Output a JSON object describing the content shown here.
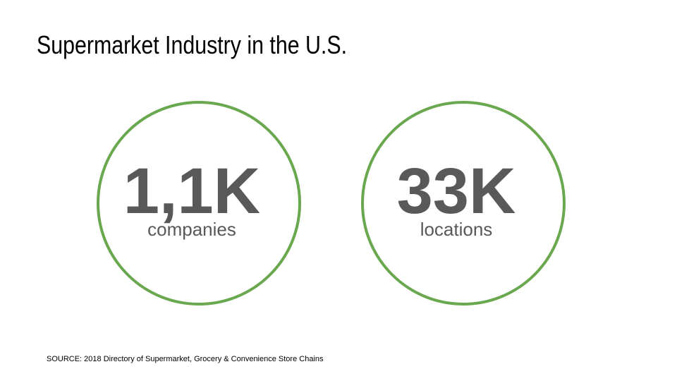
{
  "header": {
    "title": "Supermarket Industry in the U.S."
  },
  "stats": [
    {
      "value": "1,1K",
      "label": "companies"
    },
    {
      "value": "33K",
      "label": "locations"
    }
  ],
  "footer": {
    "source": "SOURCE: 2018 Directory of Supermarket, Grocery & Convenience Store Chains"
  }
}
